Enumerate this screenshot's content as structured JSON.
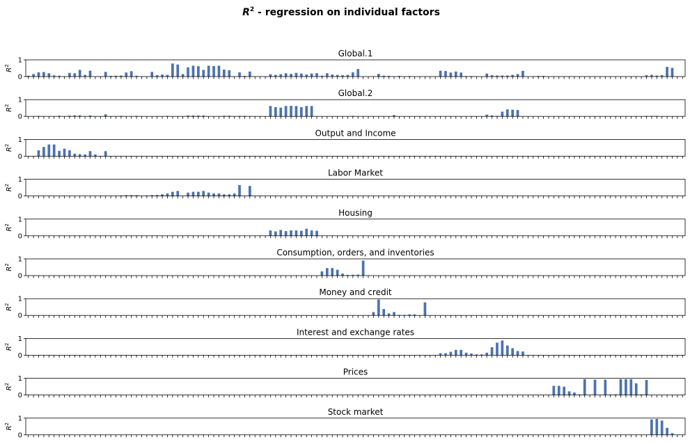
{
  "figure": {
    "title_prefix": "R",
    "title_sup": "2",
    "title_suffix": " - regression on individual factors",
    "bar_color": "#4c72b0"
  },
  "chart_data": {
    "type": "bar",
    "ylim": [
      0,
      1
    ],
    "yticks": [
      "0",
      "1"
    ],
    "ylabel_base": "R",
    "ylabel_sup": "2",
    "n_categories": 128,
    "panels": [
      {
        "title": "Global.1",
        "bars": [
          [
            0,
            0.05
          ],
          [
            1,
            0.15
          ],
          [
            2,
            0.25
          ],
          [
            3,
            0.27
          ],
          [
            4,
            0.2
          ],
          [
            5,
            0.07
          ],
          [
            6,
            0.05
          ],
          [
            8,
            0.22
          ],
          [
            9,
            0.2
          ],
          [
            10,
            0.4
          ],
          [
            11,
            0.1
          ],
          [
            12,
            0.35
          ],
          [
            15,
            0.28
          ],
          [
            16,
            0.04
          ],
          [
            17,
            0.05
          ],
          [
            18,
            0.06
          ],
          [
            19,
            0.24
          ],
          [
            20,
            0.32
          ],
          [
            21,
            0.05
          ],
          [
            24,
            0.28
          ],
          [
            25,
            0.08
          ],
          [
            26,
            0.12
          ],
          [
            27,
            0.1
          ],
          [
            28,
            0.78
          ],
          [
            29,
            0.72
          ],
          [
            30,
            0.15
          ],
          [
            31,
            0.55
          ],
          [
            32,
            0.65
          ],
          [
            33,
            0.62
          ],
          [
            34,
            0.4
          ],
          [
            35,
            0.65
          ],
          [
            36,
            0.63
          ],
          [
            37,
            0.65
          ],
          [
            38,
            0.42
          ],
          [
            39,
            0.38
          ],
          [
            41,
            0.25
          ],
          [
            42,
            0.04
          ],
          [
            43,
            0.3
          ],
          [
            47,
            0.14
          ],
          [
            48,
            0.1
          ],
          [
            49,
            0.14
          ],
          [
            50,
            0.2
          ],
          [
            51,
            0.16
          ],
          [
            52,
            0.22
          ],
          [
            53,
            0.18
          ],
          [
            54,
            0.12
          ],
          [
            55,
            0.18
          ],
          [
            56,
            0.2
          ],
          [
            57,
            0.05
          ],
          [
            58,
            0.2
          ],
          [
            59,
            0.12
          ],
          [
            60,
            0.1
          ],
          [
            61,
            0.08
          ],
          [
            62,
            0.1
          ],
          [
            63,
            0.25
          ],
          [
            64,
            0.45
          ],
          [
            68,
            0.16
          ],
          [
            69,
            0.05
          ],
          [
            70,
            0.04
          ],
          [
            72,
            0.04
          ],
          [
            74,
            0.03
          ],
          [
            80,
            0.35
          ],
          [
            81,
            0.33
          ],
          [
            82,
            0.24
          ],
          [
            83,
            0.3
          ],
          [
            84,
            0.24
          ],
          [
            85,
            0.03
          ],
          [
            86,
            0.03
          ],
          [
            89,
            0.18
          ],
          [
            90,
            0.08
          ],
          [
            91,
            0.06
          ],
          [
            92,
            0.06
          ],
          [
            93,
            0.06
          ],
          [
            94,
            0.1
          ],
          [
            95,
            0.15
          ],
          [
            96,
            0.34
          ],
          [
            98,
            0.02
          ],
          [
            99,
            0.04
          ],
          [
            100,
            0.04
          ],
          [
            120,
            0.08
          ],
          [
            121,
            0.1
          ],
          [
            122,
            0.06
          ],
          [
            123,
            0.08
          ],
          [
            124,
            0.58
          ],
          [
            125,
            0.52
          ]
        ]
      },
      {
        "title": "Global.2",
        "bars": [
          [
            2,
            0.03
          ],
          [
            6,
            0.04
          ],
          [
            8,
            0.04
          ],
          [
            9,
            0.06
          ],
          [
            10,
            0.06
          ],
          [
            12,
            0.05
          ],
          [
            15,
            0.12
          ],
          [
            18,
            0.03
          ],
          [
            21,
            0.03
          ],
          [
            27,
            0.03
          ],
          [
            31,
            0.05
          ],
          [
            32,
            0.05
          ],
          [
            33,
            0.05
          ],
          [
            34,
            0.05
          ],
          [
            38,
            0.04
          ],
          [
            39,
            0.04
          ],
          [
            41,
            0.03
          ],
          [
            42,
            0.03
          ],
          [
            47,
            0.62
          ],
          [
            48,
            0.55
          ],
          [
            49,
            0.52
          ],
          [
            50,
            0.62
          ],
          [
            51,
            0.63
          ],
          [
            52,
            0.62
          ],
          [
            53,
            0.55
          ],
          [
            54,
            0.62
          ],
          [
            55,
            0.62
          ],
          [
            63,
            0.03
          ],
          [
            71,
            0.08
          ],
          [
            89,
            0.1
          ],
          [
            90,
            0.06
          ],
          [
            91,
            0.03
          ],
          [
            92,
            0.28
          ],
          [
            93,
            0.42
          ],
          [
            94,
            0.4
          ],
          [
            95,
            0.38
          ],
          [
            120,
            0.03
          ],
          [
            121,
            0.03
          ],
          [
            122,
            0.03
          ]
        ]
      },
      {
        "title": "Output and Income",
        "bars": [
          [
            2,
            0.35
          ],
          [
            3,
            0.55
          ],
          [
            4,
            0.7
          ],
          [
            5,
            0.7
          ],
          [
            6,
            0.32
          ],
          [
            7,
            0.45
          ],
          [
            8,
            0.35
          ],
          [
            9,
            0.15
          ],
          [
            10,
            0.12
          ],
          [
            11,
            0.1
          ],
          [
            12,
            0.3
          ],
          [
            13,
            0.1
          ],
          [
            15,
            0.3
          ]
        ]
      },
      {
        "title": "Labor Market",
        "bars": [
          [
            18,
            0.03
          ],
          [
            19,
            0.05
          ],
          [
            20,
            0.05
          ],
          [
            21,
            0.05
          ],
          [
            23,
            0.03
          ],
          [
            24,
            0.05
          ],
          [
            25,
            0.06
          ],
          [
            26,
            0.1
          ],
          [
            27,
            0.15
          ],
          [
            28,
            0.25
          ],
          [
            29,
            0.3
          ],
          [
            31,
            0.2
          ],
          [
            32,
            0.25
          ],
          [
            33,
            0.25
          ],
          [
            34,
            0.3
          ],
          [
            35,
            0.2
          ],
          [
            36,
            0.15
          ],
          [
            37,
            0.15
          ],
          [
            38,
            0.1
          ],
          [
            39,
            0.1
          ],
          [
            40,
            0.15
          ],
          [
            41,
            0.65
          ],
          [
            43,
            0.6
          ]
        ]
      },
      {
        "title": "Housing",
        "bars": [
          [
            47,
            0.32
          ],
          [
            48,
            0.26
          ],
          [
            49,
            0.35
          ],
          [
            50,
            0.28
          ],
          [
            51,
            0.32
          ],
          [
            52,
            0.32
          ],
          [
            53,
            0.3
          ],
          [
            54,
            0.42
          ],
          [
            55,
            0.32
          ],
          [
            56,
            0.3
          ]
        ]
      },
      {
        "title": "Consumption, orders, and inventories",
        "bars": [
          [
            57,
            0.25
          ],
          [
            58,
            0.45
          ],
          [
            59,
            0.45
          ],
          [
            60,
            0.35
          ],
          [
            61,
            0.12
          ],
          [
            62,
            0.04
          ],
          [
            63,
            0.05
          ],
          [
            64,
            0.06
          ],
          [
            65,
            0.9
          ]
        ]
      },
      {
        "title": "Money and credit",
        "bars": [
          [
            67,
            0.2
          ],
          [
            68,
            0.95
          ],
          [
            69,
            0.38
          ],
          [
            70,
            0.12
          ],
          [
            71,
            0.2
          ],
          [
            72,
            0.03
          ],
          [
            73,
            0.03
          ],
          [
            74,
            0.06
          ],
          [
            75,
            0.06
          ],
          [
            77,
            0.78
          ]
        ]
      },
      {
        "title": "Interest and exchange rates",
        "bars": [
          [
            80,
            0.12
          ],
          [
            81,
            0.12
          ],
          [
            82,
            0.2
          ],
          [
            83,
            0.32
          ],
          [
            84,
            0.32
          ],
          [
            85,
            0.15
          ],
          [
            86,
            0.1
          ],
          [
            87,
            0.05
          ],
          [
            88,
            0.05
          ],
          [
            89,
            0.15
          ],
          [
            90,
            0.48
          ],
          [
            91,
            0.75
          ],
          [
            92,
            0.88
          ],
          [
            93,
            0.58
          ],
          [
            94,
            0.42
          ],
          [
            95,
            0.25
          ],
          [
            96,
            0.22
          ]
        ]
      },
      {
        "title": "Prices",
        "bars": [
          [
            102,
            0.55
          ],
          [
            103,
            0.55
          ],
          [
            104,
            0.5
          ],
          [
            105,
            0.22
          ],
          [
            106,
            0.15
          ],
          [
            107,
            0.03
          ],
          [
            108,
            0.95
          ],
          [
            110,
            0.92
          ],
          [
            112,
            0.92
          ],
          [
            113,
            0.03
          ],
          [
            114,
            0.04
          ],
          [
            115,
            0.95
          ],
          [
            116,
            0.95
          ],
          [
            117,
            0.95
          ],
          [
            118,
            0.7
          ],
          [
            119,
            0.04
          ],
          [
            120,
            0.9
          ]
        ]
      },
      {
        "title": "Stock market",
        "bars": [
          [
            121,
            0.92
          ],
          [
            122,
            0.95
          ],
          [
            123,
            0.85
          ],
          [
            124,
            0.42
          ],
          [
            125,
            0.1
          ]
        ]
      }
    ]
  }
}
